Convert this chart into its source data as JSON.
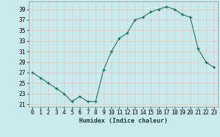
{
  "x": [
    0,
    1,
    2,
    3,
    4,
    5,
    6,
    7,
    8,
    9,
    10,
    11,
    12,
    13,
    14,
    15,
    16,
    17,
    18,
    19,
    20,
    21,
    22,
    23
  ],
  "y": [
    27,
    26,
    25,
    24,
    23,
    21.5,
    22.5,
    21.5,
    21.5,
    27.5,
    31,
    33.5,
    34.5,
    37,
    37.5,
    38.5,
    39,
    39.5,
    39,
    38,
    37.5,
    31.5,
    29,
    28
  ],
  "line_color": "#1f6b5a",
  "marker_color": "#1f6b5a",
  "bg_color": "#c8eaea",
  "grid_color": "#e8c8c8",
  "xlabel": "Humidex (Indice chaleur)",
  "ylabel_ticks": [
    21,
    23,
    25,
    27,
    29,
    31,
    33,
    35,
    37,
    39
  ],
  "ylim": [
    20.5,
    40.5
  ],
  "xlim": [
    -0.5,
    23.5
  ],
  "tick_fontsize": 5.8,
  "xlabel_fontsize": 6.5
}
